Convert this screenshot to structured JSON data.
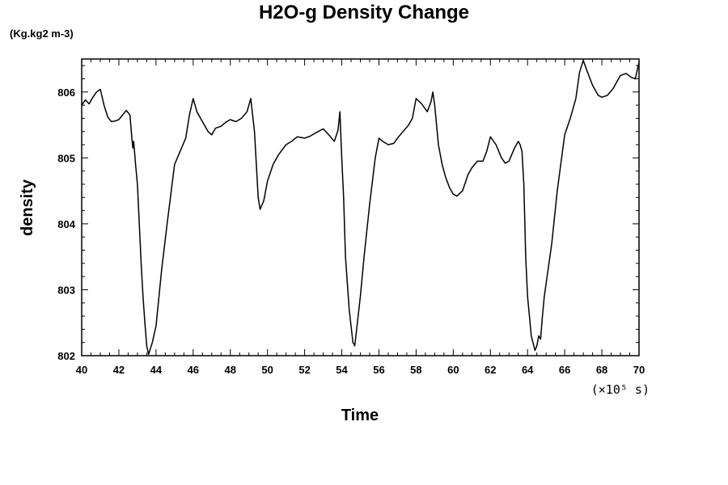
{
  "chart_data": {
    "type": "line",
    "title": "H2O-g Density Change",
    "unit_label": "(Kg.kg2 m-3)",
    "xlabel": "Time",
    "ylabel": "density",
    "x_scale_label": "(×10⁵ s)",
    "xlim": [
      40,
      70
    ],
    "ylim": [
      802,
      806.5
    ],
    "x_ticks": [
      40,
      42,
      44,
      46,
      48,
      50,
      52,
      54,
      56,
      58,
      60,
      62,
      64,
      66,
      68,
      70
    ],
    "y_ticks": [
      802,
      803,
      804,
      805,
      806
    ],
    "grid": false,
    "series": [
      {
        "color": "#000000",
        "x": [
          40.0,
          40.2,
          40.4,
          40.6,
          40.8,
          41.0,
          41.2,
          41.4,
          41.6,
          41.8,
          42.0,
          42.2,
          42.4,
          42.6,
          42.7,
          42.75,
          42.8,
          42.9,
          43.0,
          43.1,
          43.2,
          43.3,
          43.4,
          43.5,
          43.6,
          43.8,
          44.0,
          44.3,
          44.6,
          45.0,
          45.3,
          45.6,
          45.8,
          46.0,
          46.2,
          46.5,
          46.8,
          47.0,
          47.2,
          47.5,
          47.8,
          48.0,
          48.3,
          48.6,
          48.9,
          49.1,
          49.3,
          49.5,
          49.6,
          49.8,
          50.0,
          50.3,
          50.6,
          51.0,
          51.3,
          51.6,
          52.0,
          52.3,
          52.6,
          53.0,
          53.3,
          53.6,
          53.8,
          53.9,
          54.0,
          54.1,
          54.2,
          54.4,
          54.6,
          54.7,
          54.8,
          55.0,
          55.2,
          55.5,
          55.8,
          56.0,
          56.2,
          56.5,
          56.8,
          57.0,
          57.3,
          57.6,
          57.8,
          58.0,
          58.3,
          58.6,
          58.8,
          58.9,
          59.0,
          59.2,
          59.4,
          59.6,
          59.8,
          60.0,
          60.2,
          60.5,
          60.8,
          61.0,
          61.3,
          61.6,
          61.8,
          62.0,
          62.3,
          62.6,
          62.8,
          63.0,
          63.3,
          63.5,
          63.6,
          63.7,
          63.8,
          63.9,
          64.0,
          64.2,
          64.4,
          64.5,
          64.6,
          64.7,
          64.8,
          64.9,
          65.0,
          65.3,
          65.6,
          66.0,
          66.3,
          66.6,
          66.8,
          67.0,
          67.2,
          67.5,
          67.8,
          68.0,
          68.3,
          68.6,
          68.8,
          69.0,
          69.3,
          69.6,
          69.8,
          70.0
        ],
        "y": [
          805.8,
          805.88,
          805.82,
          805.92,
          806.0,
          806.04,
          805.8,
          805.62,
          805.55,
          805.56,
          805.58,
          805.65,
          805.72,
          805.65,
          805.3,
          805.15,
          805.25,
          804.9,
          804.6,
          804.0,
          803.4,
          802.9,
          802.5,
          802.15,
          802.02,
          802.2,
          802.45,
          803.3,
          804.0,
          804.9,
          805.1,
          805.3,
          805.65,
          805.9,
          805.7,
          805.55,
          805.4,
          805.35,
          805.45,
          805.48,
          805.55,
          805.58,
          805.55,
          805.6,
          805.7,
          805.9,
          805.4,
          804.4,
          804.22,
          804.35,
          804.65,
          804.9,
          805.05,
          805.2,
          805.25,
          805.32,
          805.3,
          805.33,
          805.38,
          805.44,
          805.35,
          805.25,
          805.42,
          805.7,
          805.0,
          804.4,
          803.5,
          802.7,
          802.2,
          802.15,
          802.4,
          802.9,
          803.5,
          804.3,
          805.0,
          805.3,
          805.25,
          805.2,
          805.22,
          805.3,
          805.4,
          805.5,
          805.6,
          805.9,
          805.82,
          805.7,
          805.85,
          806.0,
          805.8,
          805.2,
          804.9,
          804.7,
          804.55,
          804.45,
          804.42,
          804.5,
          804.75,
          804.85,
          804.95,
          804.95,
          805.1,
          805.32,
          805.2,
          805.0,
          804.92,
          804.95,
          805.15,
          805.25,
          805.2,
          805.1,
          804.6,
          803.5,
          802.9,
          802.3,
          802.08,
          802.15,
          802.3,
          802.25,
          802.6,
          802.9,
          803.1,
          803.7,
          804.5,
          805.35,
          805.6,
          805.9,
          806.3,
          806.48,
          806.32,
          806.1,
          805.95,
          805.92,
          805.95,
          806.05,
          806.15,
          806.25,
          806.28,
          806.22,
          806.2,
          806.45
        ]
      }
    ]
  }
}
